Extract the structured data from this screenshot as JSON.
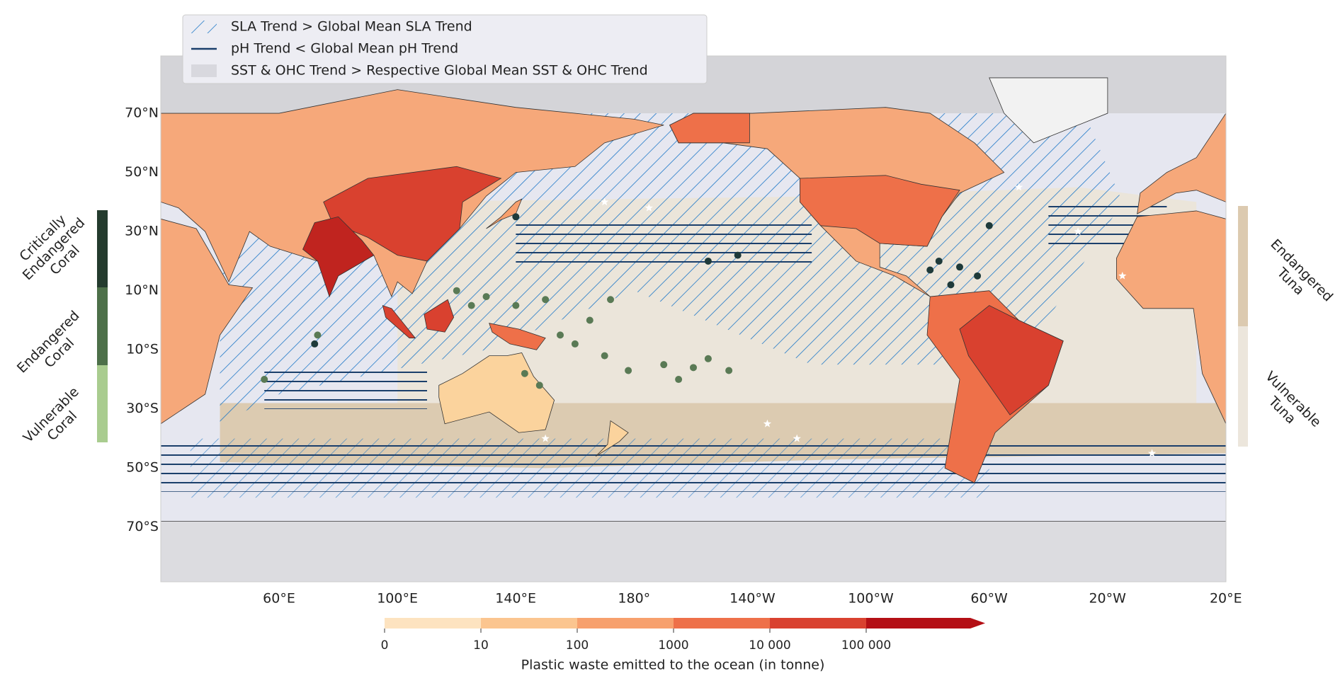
{
  "legend": [
    "SLA Trend > Global Mean SLA Trend",
    "pH Trend < Global Mean pH Trend",
    "SST & OHC Trend > Respective Global Mean SST & OHC Trend"
  ],
  "lat_labels": [
    "70°N",
    "50°N",
    "30°N",
    "10°N",
    "10°S",
    "30°S",
    "50°S",
    "70°S"
  ],
  "lon_labels": [
    "60°E",
    "100°E",
    "140°E",
    "180°",
    "140°W",
    "100°W",
    "60°W",
    "20°W",
    "20°E"
  ],
  "colorbar": {
    "ticks": [
      "0",
      "10",
      "100",
      "1000",
      "10 000",
      "100 000"
    ],
    "label": "Plastic waste emitted to the ocean (in tonne)"
  },
  "coral": [
    [
      "Critically",
      "Endangered",
      "Coral"
    ],
    [
      "Endangered",
      "Coral"
    ],
    [
      "Vulnerable",
      "Coral"
    ]
  ],
  "tuna": [
    [
      "Endangered",
      "Tuna"
    ],
    [
      "Vulnerable",
      "Tuna"
    ]
  ]
}
